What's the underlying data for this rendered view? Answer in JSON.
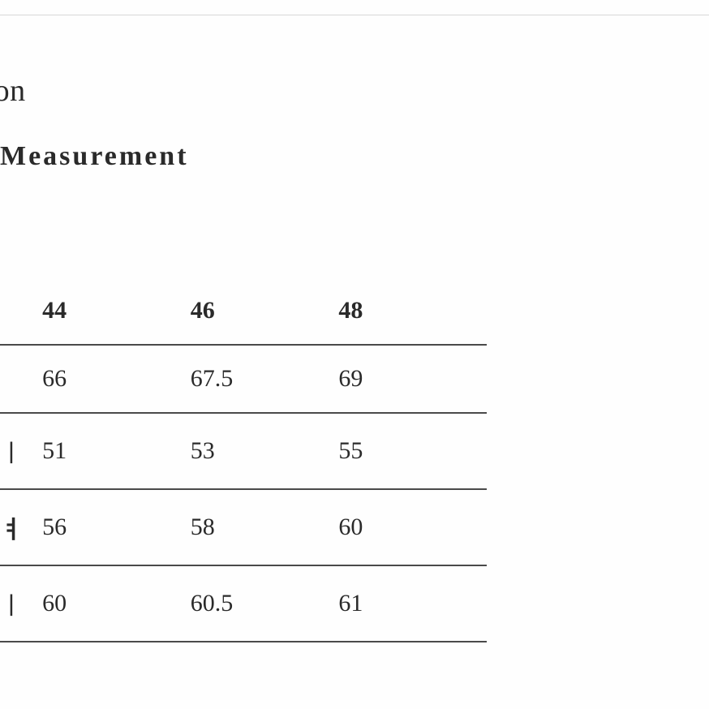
{
  "heading_partial": "iption",
  "subheading": "Measurement",
  "table": {
    "type": "table",
    "columns": [
      "",
      "44",
      "46",
      "48"
    ],
    "rows": [
      {
        "label": "",
        "values": [
          "66",
          "67.5",
          "69"
        ]
      },
      {
        "label": "ㅣ",
        "values": [
          "51",
          "53",
          "55"
        ]
      },
      {
        "label": "ㅕ",
        "values": [
          "56",
          "58",
          "60"
        ]
      },
      {
        "label": "ㅣ",
        "values": [
          "60",
          "60.5",
          "61"
        ]
      }
    ],
    "border_color": "#4a4a4a",
    "header_font_weight": 700,
    "cell_font_size": 30,
    "header_font_size": 30,
    "background_color": "#fefefe",
    "text_color": "#2a2a2a"
  }
}
